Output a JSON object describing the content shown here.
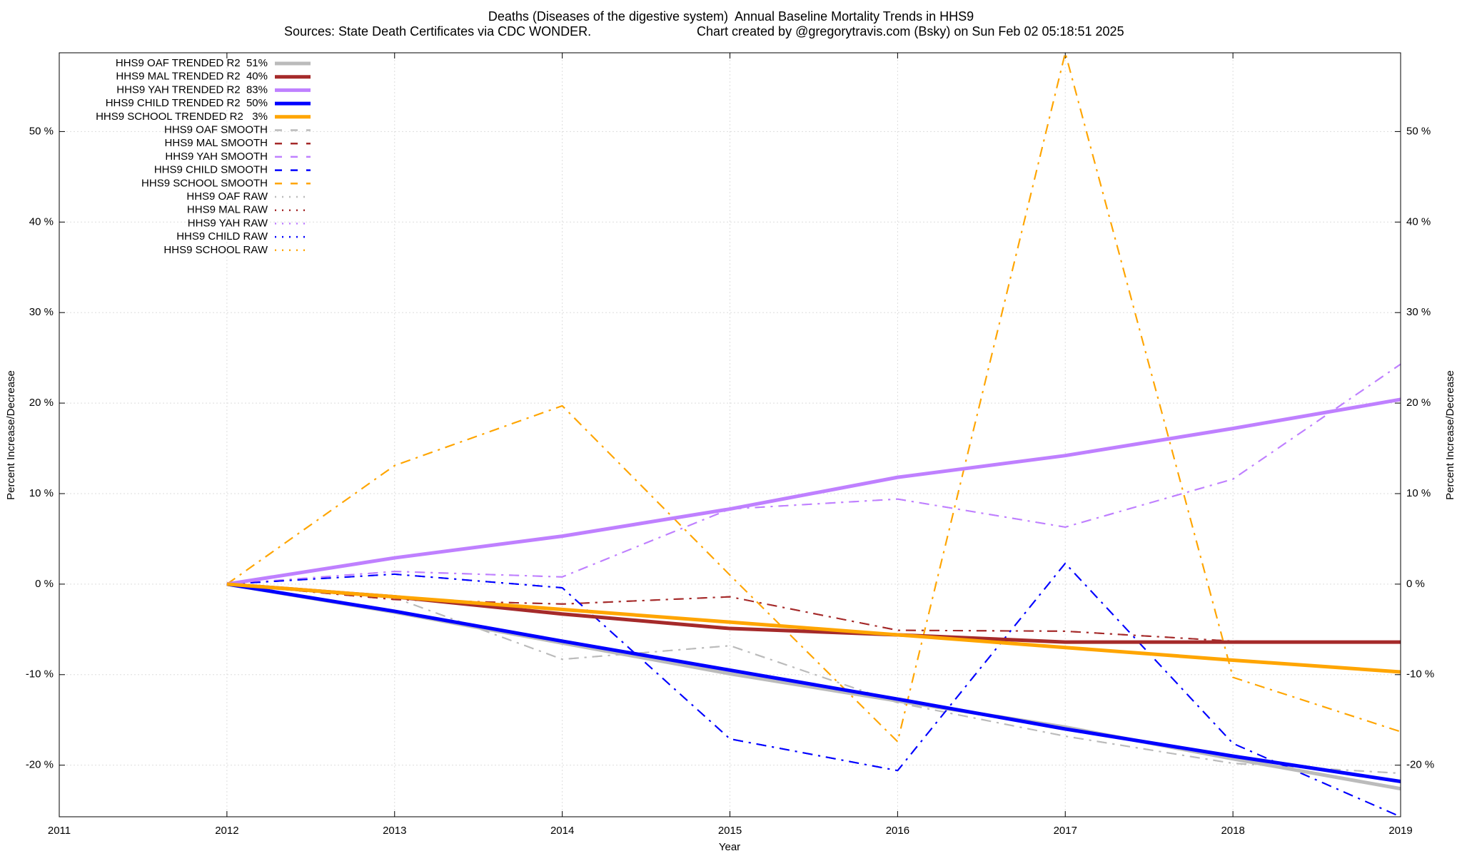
{
  "chart_data": {
    "type": "line",
    "title": "Deaths (Diseases of the digestive system)  Annual Baseline Mortality Trends in HHS9",
    "subtitle": "Sources: State Death Certificates via CDC WONDER.",
    "credit": "Chart created by @gregorytravis.com (Bsky) on Sun Feb 02 05:18:51 2025",
    "x_label": "Year",
    "y_label": "Percent Increase/Decrease",
    "x": [
      2012,
      2013,
      2014,
      2015,
      2016,
      2017,
      2018,
      2019
    ],
    "xlim": [
      2011,
      2019
    ],
    "xticks": [
      2011,
      2012,
      2013,
      2014,
      2015,
      2016,
      2017,
      2018,
      2019
    ],
    "ylim": [
      -25.7,
      58.7
    ],
    "yticks": [
      {
        "value": -20,
        "label": "-20 %"
      },
      {
        "value": -10,
        "label": "-10 %"
      },
      {
        "value": 0,
        "label": "0 %"
      },
      {
        "value": 10,
        "label": "10 %"
      },
      {
        "value": 20,
        "label": "20 %"
      },
      {
        "value": 30,
        "label": "30 %"
      },
      {
        "value": 40,
        "label": "40 %"
      },
      {
        "value": 50,
        "label": "50 %"
      }
    ],
    "grid": true,
    "legend": "top-left",
    "series": [
      {
        "name": "HHS9 OAF TRENDED R2  51%",
        "color": "#bbbbbb",
        "values": [
          0,
          -3.1,
          -6.5,
          -9.9,
          -12.9,
          -15.8,
          -19.3,
          -22.6
        ]
      },
      {
        "name": "HHS9 MAL TRENDED R2  40%",
        "color": "#a52a2a",
        "values": [
          0,
          -1.4,
          -3.3,
          -4.9,
          -5.6,
          -6.4,
          -6.4,
          -6.4
        ]
      },
      {
        "name": "HHS9 YAH TRENDED R2  83%",
        "color": "#bf80ff",
        "values": [
          0,
          2.9,
          5.3,
          8.3,
          11.8,
          14.2,
          17.2,
          20.4
        ]
      },
      {
        "name": "HHS9 CHILD TRENDED R2  50%",
        "color": "#0000ff",
        "values": [
          0,
          -3.0,
          -6.3,
          -9.5,
          -12.7,
          -16.0,
          -19.0,
          -21.8
        ]
      },
      {
        "name": "HHS9 SCHOOL TRENDED R2   3%",
        "color": "#ffa500",
        "values": [
          0,
          -1.4,
          -2.8,
          -4.2,
          -5.6,
          -7.0,
          -8.4,
          -9.7
        ]
      },
      {
        "name": "HHS9 OAF SMOOTH",
        "color": "#bbbbbb",
        "values": [
          0,
          -1.5,
          -8.3,
          -6.8,
          -13.1,
          -16.8,
          -19.8,
          -20.9
        ]
      },
      {
        "name": "HHS9 MAL SMOOTH",
        "color": "#a52a2a",
        "values": [
          0,
          -1.7,
          -2.2,
          -1.4,
          -5.1,
          -5.2,
          -6.3,
          -6.5
        ]
      },
      {
        "name": "HHS9 YAH SMOOTH",
        "color": "#bf80ff",
        "values": [
          0,
          1.4,
          0.8,
          8.3,
          9.4,
          6.3,
          11.6,
          24.3
        ]
      },
      {
        "name": "HHS9 CHILD SMOOTH",
        "color": "#0000ff",
        "values": [
          0,
          1.1,
          -0.4,
          -17.1,
          -20.6,
          2.3,
          -17.6,
          -25.7
        ]
      },
      {
        "name": "HHS9 SCHOOL SMOOTH",
        "color": "#ffa500",
        "values": [
          0,
          13.1,
          19.7,
          1.0,
          -17.4,
          58.7,
          -10.3,
          -16.3
        ]
      },
      {
        "name": "HHS9 OAF RAW",
        "color": "#bbbbbb",
        "values": [
          0,
          -1.5,
          -8.3,
          -6.8,
          -13.1,
          -16.8,
          -19.8,
          -20.9
        ]
      },
      {
        "name": "HHS9 MAL RAW",
        "color": "#a52a2a",
        "values": [
          0,
          -1.7,
          -2.2,
          -1.4,
          -5.1,
          -5.2,
          -6.3,
          -6.5
        ]
      },
      {
        "name": "HHS9 YAH RAW",
        "color": "#bf80ff",
        "values": [
          0,
          1.4,
          0.8,
          8.3,
          9.4,
          6.3,
          11.6,
          24.3
        ]
      },
      {
        "name": "HHS9 CHILD RAW",
        "color": "#0000ff",
        "values": [
          0,
          1.1,
          -0.4,
          -17.1,
          -20.6,
          2.3,
          -17.6,
          -25.7
        ]
      },
      {
        "name": "HHS9 SCHOOL RAW",
        "color": "#ffa500",
        "values": [
          0,
          13.1,
          19.7,
          1.0,
          -17.4,
          58.7,
          -10.3,
          -16.3
        ]
      }
    ]
  }
}
